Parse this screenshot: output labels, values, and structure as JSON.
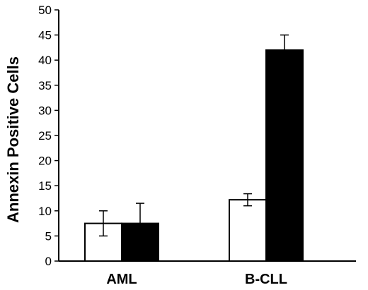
{
  "chart_data": {
    "type": "bar",
    "title": "",
    "xlabel": "",
    "ylabel": "Annexin Positive Cells",
    "ylim": [
      0,
      50
    ],
    "yticks": [
      0,
      5,
      10,
      15,
      20,
      25,
      30,
      35,
      40,
      45,
      50
    ],
    "categories": [
      "AML",
      "B-CLL"
    ],
    "grid": false,
    "legend": "none",
    "series": [
      {
        "values": [
          7.5,
          12.2
        ],
        "errors": [
          2.5,
          1.2
        ],
        "color": "#ffffff"
      },
      {
        "values": [
          7.5,
          42.0
        ],
        "errors": [
          4.0,
          3.0
        ],
        "color": "#000000"
      }
    ]
  }
}
